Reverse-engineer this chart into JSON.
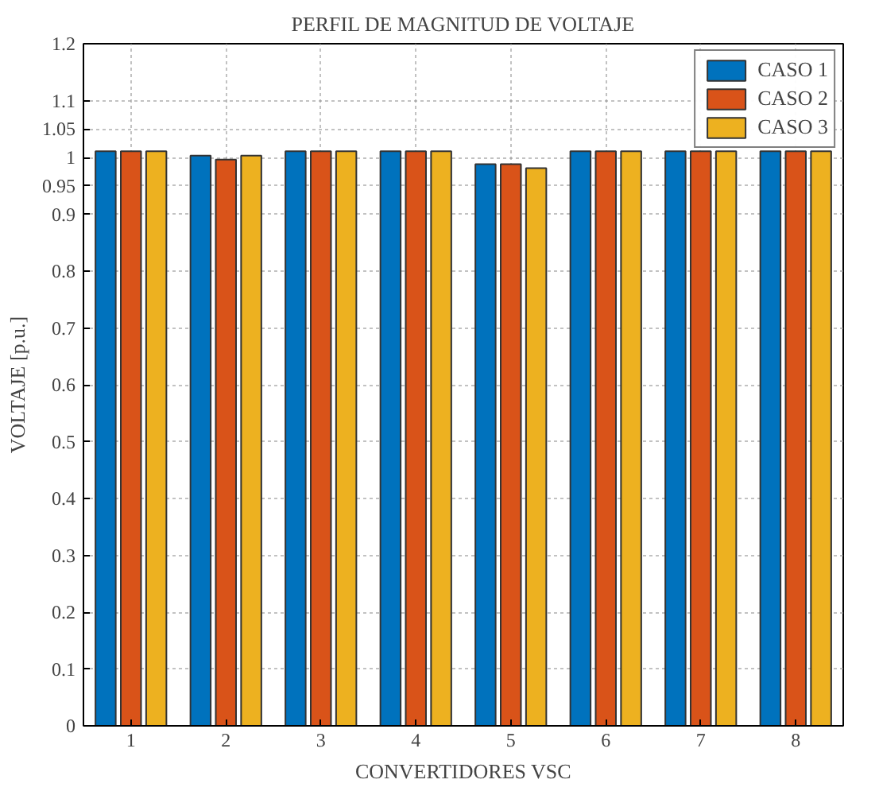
{
  "chart_data": {
    "type": "bar",
    "title": "PERFIL DE MAGNITUD DE VOLTAJE",
    "xlabel": "CONVERTIDORES VSC",
    "ylabel": "VOLTAJE [p.u.]",
    "categories": [
      "1",
      "2",
      "3",
      "4",
      "5",
      "6",
      "7",
      "8"
    ],
    "series": [
      {
        "name": "CASO 1",
        "color": "#0072bd",
        "values": [
          1.011,
          1.003,
          1.011,
          1.011,
          0.988,
          1.011,
          1.011,
          1.011
        ]
      },
      {
        "name": "CASO 2",
        "color": "#d95319",
        "values": [
          1.011,
          0.996,
          1.011,
          1.011,
          0.988,
          1.011,
          1.011,
          1.011
        ]
      },
      {
        "name": "CASO 3",
        "color": "#edb120",
        "values": [
          1.011,
          1.003,
          1.011,
          1.011,
          0.981,
          1.011,
          1.011,
          1.011
        ]
      }
    ],
    "ylim": [
      0,
      1.2
    ],
    "yticks": [
      0,
      0.1,
      0.2,
      0.3,
      0.4,
      0.5,
      0.6,
      0.7,
      0.8,
      0.9,
      0.95,
      1,
      1.05,
      1.1,
      1.2
    ],
    "grid": true,
    "legend": "top right"
  }
}
